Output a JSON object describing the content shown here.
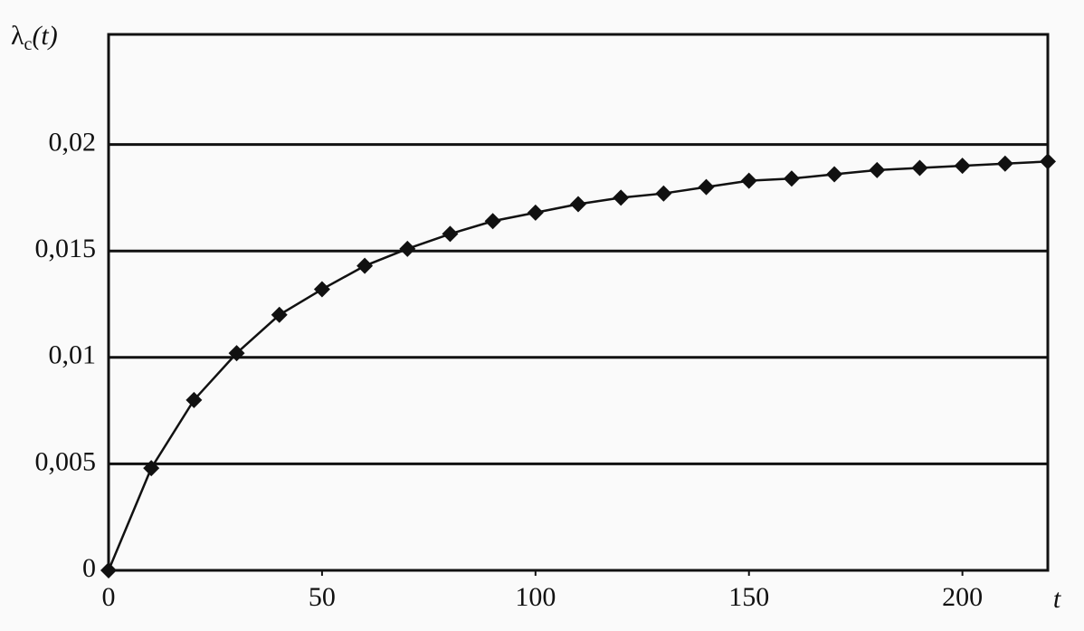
{
  "chart_data": {
    "type": "line",
    "ylabel": {
      "base": "λ",
      "sub": "c",
      "arg": "(t)"
    },
    "xlabel": "t",
    "x": [
      0,
      10,
      20,
      30,
      40,
      50,
      60,
      70,
      80,
      90,
      100,
      110,
      120,
      130,
      140,
      150,
      160,
      170,
      180,
      190,
      200,
      210,
      220
    ],
    "values": [
      0,
      0.0048,
      0.008,
      0.0102,
      0.012,
      0.0132,
      0.0143,
      0.0151,
      0.0158,
      0.0164,
      0.0168,
      0.0172,
      0.0175,
      0.0177,
      0.018,
      0.0183,
      0.0184,
      0.0186,
      0.0188,
      0.0189,
      0.019,
      0.0191,
      0.0192
    ],
    "color": "#111111",
    "xlim": [
      0,
      220
    ],
    "xticks": [
      0,
      50,
      100,
      150,
      200
    ],
    "ylim": [
      0,
      0.025
    ],
    "yticks": [
      0,
      {
        "value": 0.005,
        "label": "0,005"
      },
      {
        "value": 0.01,
        "label": "0,01"
      },
      {
        "value": 0.015,
        "label": "0,015"
      },
      {
        "value": 0.02,
        "label": "0,02"
      }
    ],
    "grid": true
  }
}
